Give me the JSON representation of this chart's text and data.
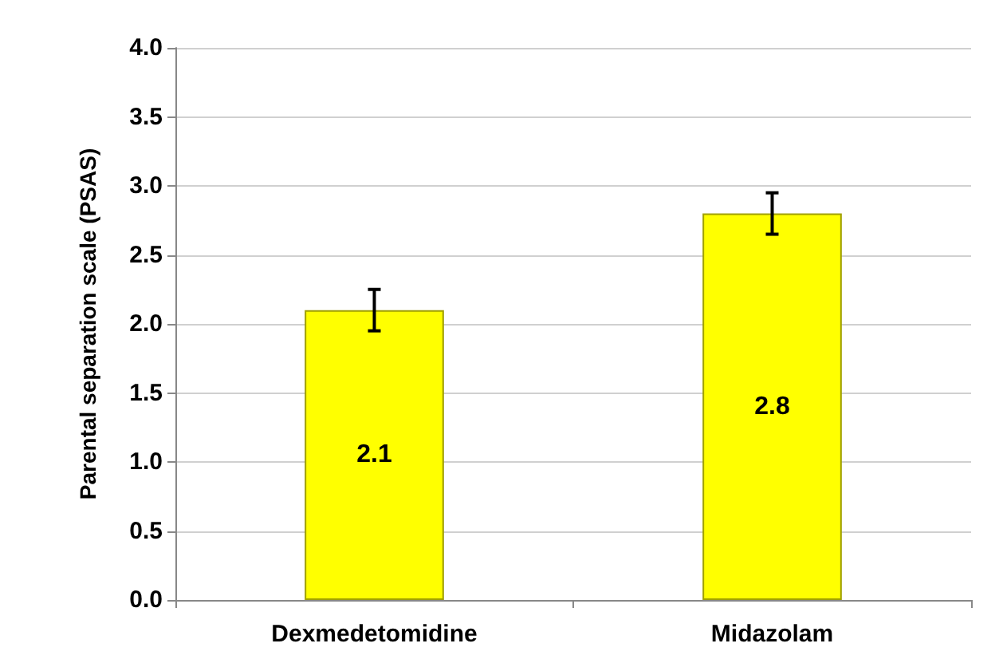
{
  "chart_data": {
    "type": "bar",
    "ylabel": "Parental separation scale (PSAS)",
    "categories": [
      "Dexmedetomidine",
      "Midazolam"
    ],
    "values": [
      2.1,
      2.8
    ],
    "errors": [
      0.15,
      0.15
    ],
    "color": "#ffff00",
    "ylim": [
      0,
      4
    ],
    "yticks": [
      {
        "value": 0,
        "label": "0.0"
      },
      0.5,
      {
        "value": 1,
        "label": "1.0"
      },
      1.5,
      {
        "value": 2,
        "label": "2.0"
      },
      2.5,
      {
        "value": 3,
        "label": "3.0"
      },
      3.5,
      {
        "value": 4,
        "label": "4.0"
      }
    ],
    "grid": "y",
    "data_labels": true
  }
}
